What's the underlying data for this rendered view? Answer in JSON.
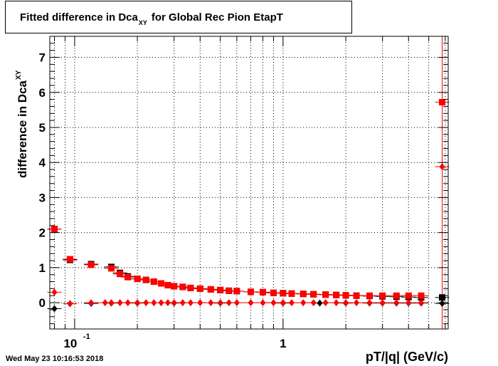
{
  "title": {
    "main": "Fitted difference in Dca",
    "sub": "XY",
    "rest": "for Global Rec Pion EtapT"
  },
  "ylabel": {
    "main": "difference in Dca",
    "sub": "XY"
  },
  "xlabel": "pT/|q| (GeV/c)",
  "timestamp": "Wed May 23 10:16:53 2018",
  "colors": {
    "red": "#ff0000",
    "black": "#000000",
    "grid": "#000000"
  },
  "chart_data": {
    "type": "scatter",
    "x_scale": "log",
    "xlim": [
      0.076,
      6.2
    ],
    "ylim": [
      -0.75,
      7.6
    ],
    "grid": true,
    "x_tick_labels": [
      {
        "value": 0.1,
        "base": "10",
        "exp": "-1"
      },
      {
        "value": 1,
        "base": "1",
        "exp": ""
      }
    ],
    "y_ticks": [
      0,
      1,
      2,
      3,
      4,
      5,
      6,
      7
    ],
    "series": [
      {
        "marker": "square",
        "color": "#000000",
        "points": [
          [
            0.08,
            2.1
          ],
          [
            0.095,
            1.22
          ],
          [
            0.12,
            1.1
          ],
          [
            0.15,
            1.02
          ],
          [
            0.165,
            0.85
          ],
          [
            0.18,
            0.75
          ],
          [
            0.2,
            0.68
          ],
          [
            0.22,
            0.65
          ],
          [
            0.24,
            0.6
          ],
          [
            0.26,
            0.55
          ],
          [
            0.28,
            0.5
          ],
          [
            0.3,
            0.47
          ],
          [
            0.33,
            0.45
          ],
          [
            0.36,
            0.42
          ],
          [
            0.4,
            0.4
          ],
          [
            0.45,
            0.38
          ],
          [
            0.5,
            0.36
          ],
          [
            0.55,
            0.34
          ],
          [
            0.6,
            0.33
          ],
          [
            0.7,
            0.31
          ],
          [
            0.8,
            0.3
          ],
          [
            0.9,
            0.28
          ],
          [
            1.0,
            0.27
          ],
          [
            1.1,
            0.26
          ],
          [
            1.25,
            0.25
          ],
          [
            1.4,
            0.24
          ],
          [
            1.6,
            0.23
          ],
          [
            1.8,
            0.22
          ],
          [
            2.0,
            0.21
          ],
          [
            2.25,
            0.2
          ],
          [
            2.6,
            0.19
          ],
          [
            3.0,
            0.18
          ],
          [
            3.5,
            0.17
          ],
          [
            4.0,
            0.16
          ],
          [
            4.6,
            0.15
          ],
          [
            5.8,
            0.15
          ]
        ]
      },
      {
        "marker": "square",
        "color": "#ff0000",
        "points": [
          [
            0.08,
            2.1
          ],
          [
            0.095,
            1.24
          ],
          [
            0.12,
            1.08
          ],
          [
            0.15,
            0.98
          ],
          [
            0.165,
            0.82
          ],
          [
            0.18,
            0.73
          ],
          [
            0.2,
            0.68
          ],
          [
            0.22,
            0.65
          ],
          [
            0.24,
            0.6
          ],
          [
            0.26,
            0.55
          ],
          [
            0.28,
            0.5
          ],
          [
            0.3,
            0.47
          ],
          [
            0.33,
            0.45
          ],
          [
            0.36,
            0.42
          ],
          [
            0.4,
            0.4
          ],
          [
            0.45,
            0.38
          ],
          [
            0.5,
            0.36
          ],
          [
            0.55,
            0.34
          ],
          [
            0.6,
            0.33
          ],
          [
            0.7,
            0.31
          ],
          [
            0.8,
            0.3
          ],
          [
            0.9,
            0.28
          ],
          [
            1.0,
            0.27
          ],
          [
            1.1,
            0.26
          ],
          [
            1.25,
            0.25
          ],
          [
            1.4,
            0.24
          ],
          [
            1.6,
            0.23
          ],
          [
            1.8,
            0.22
          ],
          [
            2.0,
            0.21
          ],
          [
            2.25,
            0.2
          ],
          [
            2.6,
            0.2
          ],
          [
            3.0,
            0.2
          ],
          [
            3.5,
            0.2
          ],
          [
            4.0,
            0.2
          ],
          [
            4.6,
            0.2
          ],
          [
            5.8,
            5.72
          ]
        ]
      },
      {
        "marker": "diamond",
        "color": "#000000",
        "points": [
          [
            0.08,
            -0.17
          ],
          [
            0.095,
            -0.03
          ],
          [
            0.12,
            -0.02
          ],
          [
            0.15,
            -0.01
          ],
          [
            0.2,
            -0.01
          ],
          [
            0.3,
            -0.01
          ],
          [
            0.5,
            -0.01
          ],
          [
            1.0,
            -0.01
          ],
          [
            1.5,
            -0.01
          ],
          [
            2.0,
            -0.01
          ],
          [
            2.6,
            -0.01
          ],
          [
            3.0,
            -0.01
          ],
          [
            3.5,
            -0.01
          ],
          [
            4.0,
            -0.01
          ],
          [
            4.6,
            -0.01
          ],
          [
            5.8,
            -0.02
          ]
        ]
      },
      {
        "marker": "diamond",
        "color": "#ff0000",
        "points": [
          [
            0.08,
            0.3
          ],
          [
            0.095,
            -0.03
          ],
          [
            0.12,
            0.0
          ],
          [
            0.14,
            0.0
          ],
          [
            0.15,
            0.0
          ],
          [
            0.165,
            0.0
          ],
          [
            0.18,
            0.0
          ],
          [
            0.2,
            0.0
          ],
          [
            0.22,
            0.0
          ],
          [
            0.24,
            0.0
          ],
          [
            0.26,
            0.0
          ],
          [
            0.28,
            0.0
          ],
          [
            0.3,
            0.0
          ],
          [
            0.33,
            0.0
          ],
          [
            0.36,
            0.0
          ],
          [
            0.4,
            0.0
          ],
          [
            0.45,
            0.0
          ],
          [
            0.5,
            0.0
          ],
          [
            0.55,
            0.0
          ],
          [
            0.6,
            0.0
          ],
          [
            0.7,
            0.0
          ],
          [
            0.8,
            0.0
          ],
          [
            0.9,
            0.0
          ],
          [
            1.0,
            0.0
          ],
          [
            1.1,
            0.0
          ],
          [
            1.25,
            0.0
          ],
          [
            1.4,
            0.0
          ],
          [
            1.6,
            0.0
          ],
          [
            1.8,
            0.0
          ],
          [
            2.0,
            0.0
          ],
          [
            2.25,
            0.0
          ],
          [
            2.6,
            0.0
          ],
          [
            3.0,
            0.0
          ],
          [
            3.5,
            0.0
          ],
          [
            4.0,
            0.0
          ],
          [
            4.6,
            0.0
          ],
          [
            5.8,
            3.88
          ]
        ]
      }
    ]
  }
}
